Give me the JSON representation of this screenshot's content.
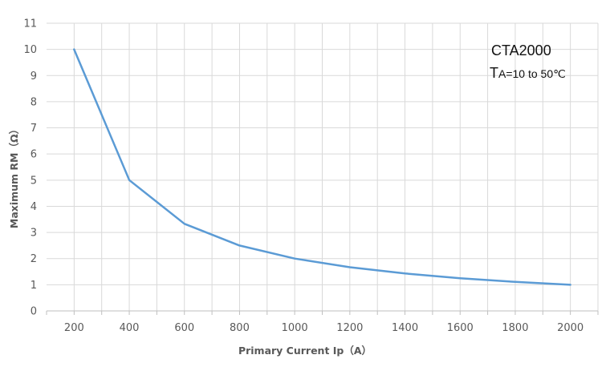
{
  "chart_data": {
    "type": "line",
    "title": "",
    "xlabel": "Primary Current Ip（A）",
    "ylabel": "Maximum RM（Ω）",
    "x": [
      200,
      400,
      600,
      800,
      1000,
      1200,
      1400,
      1600,
      1800,
      2000
    ],
    "series": [
      {
        "values": [
          10,
          5,
          3.33,
          2.5,
          2,
          1.67,
          1.43,
          1.25,
          1.11,
          1.0
        ]
      }
    ],
    "x_ticks": [
      "200",
      "400",
      "600",
      "800",
      "1000",
      "1200",
      "1400",
      "1600",
      "1800",
      "2000"
    ],
    "y_ticks": [
      "0",
      "1",
      "2",
      "3",
      "4",
      "5",
      "6",
      "7",
      "8",
      "9",
      "10",
      "11"
    ],
    "xlim": [
      100,
      2100
    ],
    "ylim": [
      0,
      11
    ],
    "grid": true,
    "annotation": {
      "model": "CTA2000",
      "condition_symbol": "T",
      "condition_subscript": "A",
      "condition_text": "=10 to 50℃"
    },
    "colors": {
      "line": "#5b9bd5",
      "grid": "#d9d9d9",
      "axis": "#bfbfbf",
      "text": "#595959"
    }
  }
}
